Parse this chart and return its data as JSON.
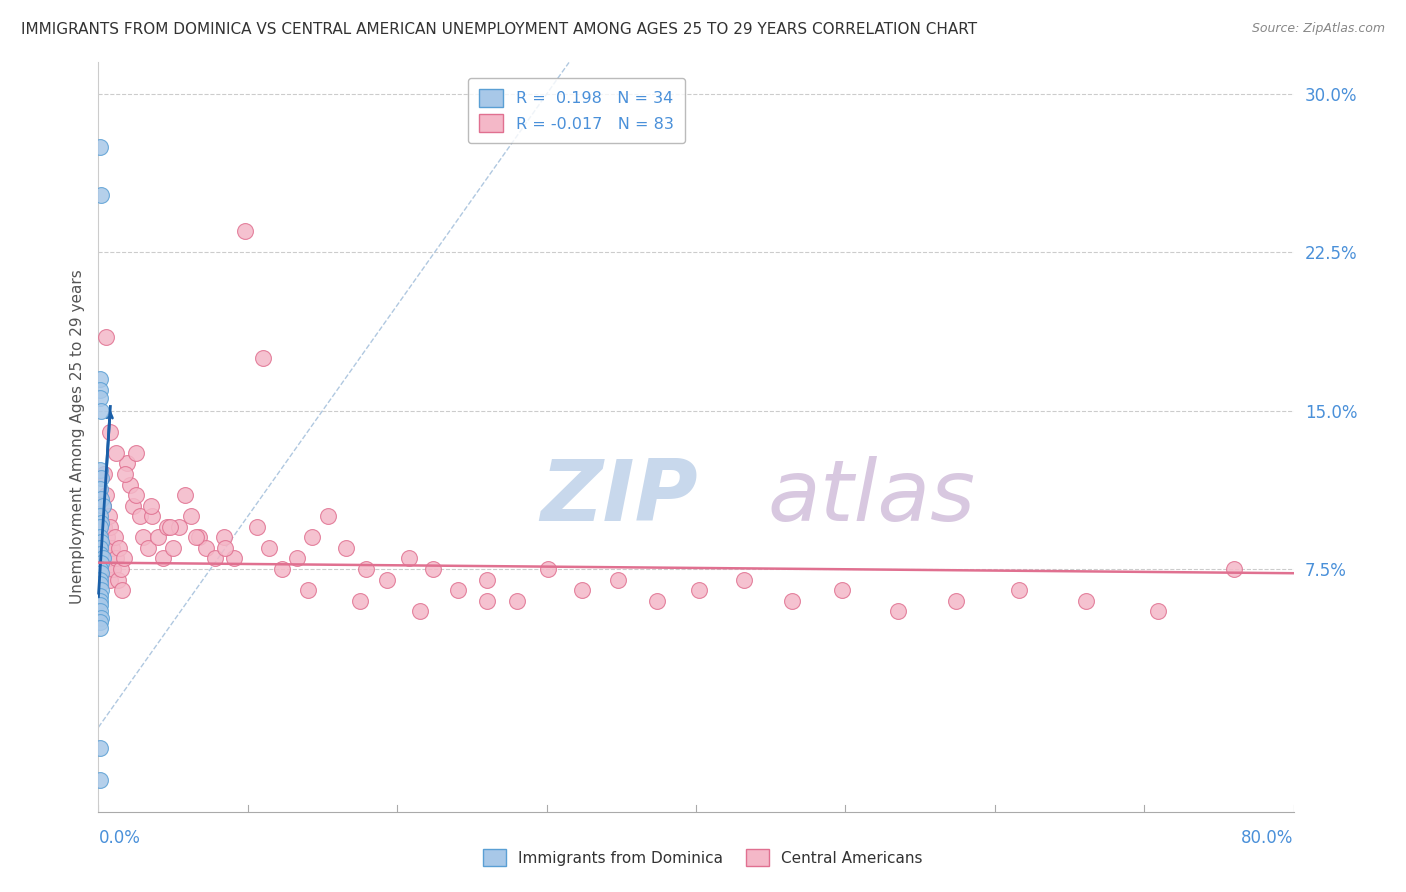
{
  "title": "IMMIGRANTS FROM DOMINICA VS CENTRAL AMERICAN UNEMPLOYMENT AMONG AGES 25 TO 29 YEARS CORRELATION CHART",
  "source": "Source: ZipAtlas.com",
  "ylabel": "Unemployment Among Ages 25 to 29 years",
  "xlim": [
    0.0,
    0.8
  ],
  "ylim": [
    -0.04,
    0.315
  ],
  "ytick_vals": [
    0.075,
    0.15,
    0.225,
    0.3
  ],
  "ytick_labels": [
    "7.5%",
    "15.0%",
    "22.5%",
    "30.0%"
  ],
  "dominica_color": "#a8c8e8",
  "dominica_edge": "#5a9fd4",
  "central_color": "#f4b8c8",
  "central_edge": "#e07090",
  "trend_blue": "#1a5fa8",
  "trend_pink": "#e07090",
  "diag_color": "#b0c8e0",
  "background": "#ffffff",
  "grid_color": "#cccccc",
  "watermark_zip": "ZIP",
  "watermark_atlas": "atlas",
  "dom_x": [
    0.001,
    0.002,
    0.001,
    0.001,
    0.001,
    0.002,
    0.001,
    0.002,
    0.001,
    0.002,
    0.003,
    0.001,
    0.002,
    0.001,
    0.001,
    0.002,
    0.001,
    0.001,
    0.003,
    0.002,
    0.001,
    0.002,
    0.001,
    0.001,
    0.002,
    0.001,
    0.001,
    0.001,
    0.001,
    0.002,
    0.001,
    0.001,
    0.001,
    0.001
  ],
  "dom_y": [
    0.275,
    0.252,
    0.165,
    0.16,
    0.156,
    0.15,
    0.122,
    0.118,
    0.113,
    0.108,
    0.105,
    0.1,
    0.097,
    0.095,
    0.09,
    0.088,
    0.085,
    0.082,
    0.08,
    0.078,
    0.075,
    0.073,
    0.07,
    0.068,
    0.065,
    0.062,
    0.06,
    0.058,
    0.055,
    0.052,
    0.05,
    0.047,
    -0.01,
    -0.025
  ],
  "cen_x": [
    0.003,
    0.004,
    0.004,
    0.005,
    0.005,
    0.006,
    0.006,
    0.007,
    0.007,
    0.008,
    0.008,
    0.009,
    0.01,
    0.011,
    0.012,
    0.013,
    0.014,
    0.015,
    0.016,
    0.017,
    0.019,
    0.021,
    0.023,
    0.025,
    0.028,
    0.03,
    0.033,
    0.036,
    0.04,
    0.043,
    0.046,
    0.05,
    0.054,
    0.058,
    0.062,
    0.067,
    0.072,
    0.078,
    0.084,
    0.091,
    0.098,
    0.106,
    0.114,
    0.123,
    0.133,
    0.143,
    0.154,
    0.166,
    0.179,
    0.193,
    0.208,
    0.224,
    0.241,
    0.26,
    0.28,
    0.301,
    0.324,
    0.348,
    0.374,
    0.402,
    0.432,
    0.464,
    0.498,
    0.535,
    0.574,
    0.616,
    0.661,
    0.709,
    0.76,
    0.005,
    0.008,
    0.012,
    0.018,
    0.025,
    0.035,
    0.048,
    0.065,
    0.085,
    0.11,
    0.14,
    0.175,
    0.215,
    0.26
  ],
  "cen_y": [
    0.105,
    0.095,
    0.12,
    0.085,
    0.11,
    0.09,
    0.075,
    0.1,
    0.08,
    0.07,
    0.095,
    0.085,
    0.075,
    0.09,
    0.08,
    0.07,
    0.085,
    0.075,
    0.065,
    0.08,
    0.125,
    0.115,
    0.105,
    0.13,
    0.1,
    0.09,
    0.085,
    0.1,
    0.09,
    0.08,
    0.095,
    0.085,
    0.095,
    0.11,
    0.1,
    0.09,
    0.085,
    0.08,
    0.09,
    0.08,
    0.235,
    0.095,
    0.085,
    0.075,
    0.08,
    0.09,
    0.1,
    0.085,
    0.075,
    0.07,
    0.08,
    0.075,
    0.065,
    0.07,
    0.06,
    0.075,
    0.065,
    0.07,
    0.06,
    0.065,
    0.07,
    0.06,
    0.065,
    0.055,
    0.06,
    0.065,
    0.06,
    0.055,
    0.075,
    0.185,
    0.14,
    0.13,
    0.12,
    0.11,
    0.105,
    0.095,
    0.09,
    0.085,
    0.175,
    0.065,
    0.06,
    0.055,
    0.06
  ],
  "trend_dom_x0": 0.0,
  "trend_dom_x1": 0.008,
  "trend_dom_y0": 0.062,
  "trend_dom_y1": 0.152,
  "trend_cen_x0": 0.0,
  "trend_cen_x1": 0.8,
  "trend_cen_y0": 0.078,
  "trend_cen_y1": 0.073
}
